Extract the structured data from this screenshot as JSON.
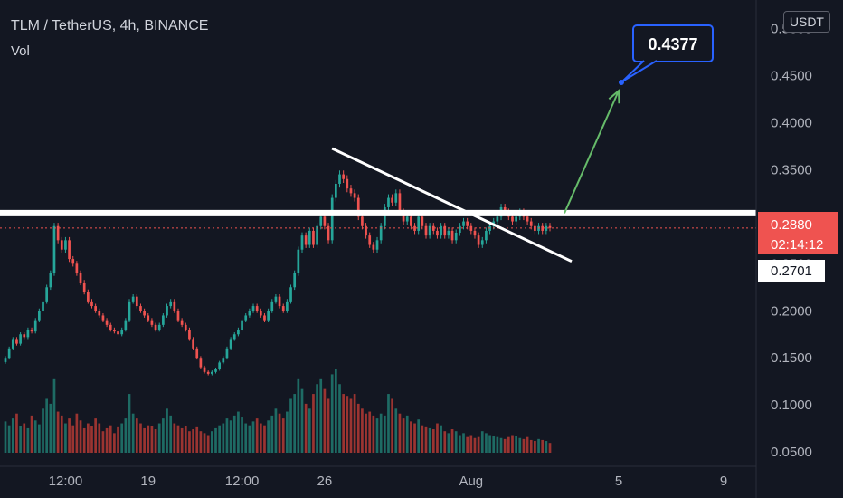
{
  "header": {
    "symbol_line": "TLM / TetherUS, 4h, BINANCE",
    "volume_label": "Vol",
    "currency_button": "USDT"
  },
  "colors": {
    "background": "#131722",
    "up": "#26a69a",
    "down": "#ef5350",
    "up_volume": "#1e6b64",
    "down_volume": "#9b3431",
    "trendline": "#ffffff",
    "support": "#ffffff",
    "arrow": "#66bb6a",
    "callout_border": "#2962ff",
    "price_line": "#ef5350"
  },
  "chart_data": {
    "type": "candlestick",
    "title": "TLM / TetherUS, 4h, BINANCE",
    "xlabel": "",
    "ylabel": "USDT",
    "ylim": [
      0.028,
      0.513
    ],
    "x_ticks": [
      "12:00",
      "19",
      "12:00",
      "26",
      "Aug",
      "5",
      "9"
    ],
    "y_ticks": [
      "0.0500",
      "0.1000",
      "0.1500",
      "0.2000",
      "0.2500",
      "0.3000",
      "0.3500",
      "0.4000",
      "0.4500",
      "0.5000"
    ],
    "y_tick_values": [
      0.05,
      0.1,
      0.15,
      0.2,
      0.25,
      0.3,
      0.35,
      0.4,
      0.45,
      0.5
    ],
    "current_price": "0.2880",
    "countdown": "02:14:12",
    "support_price": "0.2701",
    "target_price": "0.4377",
    "grid": false,
    "series": [
      {
        "name": "TLM/USDT",
        "close": [
          0.15,
          0.16,
          0.17,
          0.165,
          0.175,
          0.172,
          0.18,
          0.178,
          0.19,
          0.2,
          0.21,
          0.225,
          0.24,
          0.29,
          0.275,
          0.265,
          0.275,
          0.255,
          0.25,
          0.24,
          0.23,
          0.22,
          0.21,
          0.205,
          0.2,
          0.195,
          0.19,
          0.185,
          0.18,
          0.178,
          0.175,
          0.18,
          0.19,
          0.21,
          0.215,
          0.205,
          0.2,
          0.195,
          0.19,
          0.185,
          0.18,
          0.185,
          0.195,
          0.205,
          0.21,
          0.2,
          0.19,
          0.185,
          0.18,
          0.17,
          0.16,
          0.15,
          0.14,
          0.135,
          0.133,
          0.135,
          0.138,
          0.145,
          0.15,
          0.16,
          0.17,
          0.175,
          0.18,
          0.19,
          0.195,
          0.2,
          0.205,
          0.2,
          0.195,
          0.19,
          0.2,
          0.21,
          0.215,
          0.205,
          0.2,
          0.21,
          0.225,
          0.24,
          0.265,
          0.28,
          0.27,
          0.285,
          0.27,
          0.29,
          0.3,
          0.29,
          0.275,
          0.32,
          0.335,
          0.345,
          0.34,
          0.33,
          0.325,
          0.32,
          0.3,
          0.29,
          0.28,
          0.27,
          0.265,
          0.275,
          0.29,
          0.31,
          0.32,
          0.315,
          0.325,
          0.305,
          0.295,
          0.3,
          0.29,
          0.285,
          0.3,
          0.29,
          0.28,
          0.29,
          0.285,
          0.28,
          0.29,
          0.28,
          0.285,
          0.275,
          0.283,
          0.29,
          0.295,
          0.29,
          0.285,
          0.28,
          0.27,
          0.275,
          0.285,
          0.29,
          0.295,
          0.3,
          0.31,
          0.305,
          0.3,
          0.295,
          0.3,
          0.305,
          0.3,
          0.295,
          0.29,
          0.285,
          0.29,
          0.285,
          0.29,
          0.288
        ]
      },
      {
        "name": "Volume",
        "values": [
          32,
          28,
          35,
          40,
          27,
          30,
          25,
          38,
          33,
          29,
          45,
          55,
          50,
          75,
          42,
          38,
          30,
          35,
          28,
          40,
          33,
          25,
          30,
          27,
          35,
          30,
          22,
          25,
          28,
          20,
          26,
          30,
          35,
          60,
          40,
          35,
          30,
          25,
          28,
          27,
          24,
          30,
          35,
          45,
          38,
          30,
          28,
          25,
          27,
          22,
          24,
          26,
          22,
          20,
          18,
          22,
          25,
          28,
          30,
          35,
          33,
          38,
          42,
          36,
          30,
          28,
          32,
          35,
          30,
          28,
          33,
          38,
          45,
          40,
          35,
          42,
          55,
          60,
          75,
          65,
          50,
          45,
          60,
          70,
          75,
          65,
          55,
          80,
          85,
          70,
          60,
          58,
          55,
          60,
          50,
          45,
          40,
          42,
          38,
          35,
          40,
          38,
          60,
          55,
          45,
          40,
          35,
          38,
          32,
          30,
          34,
          28,
          26,
          25,
          24,
          30,
          28,
          22,
          20,
          24,
          22,
          18,
          20,
          16,
          18,
          15,
          16,
          22,
          20,
          18,
          17,
          16,
          15,
          14,
          16,
          18,
          17,
          15,
          14,
          16,
          13,
          12,
          14,
          13,
          12,
          10
        ]
      }
    ]
  }
}
